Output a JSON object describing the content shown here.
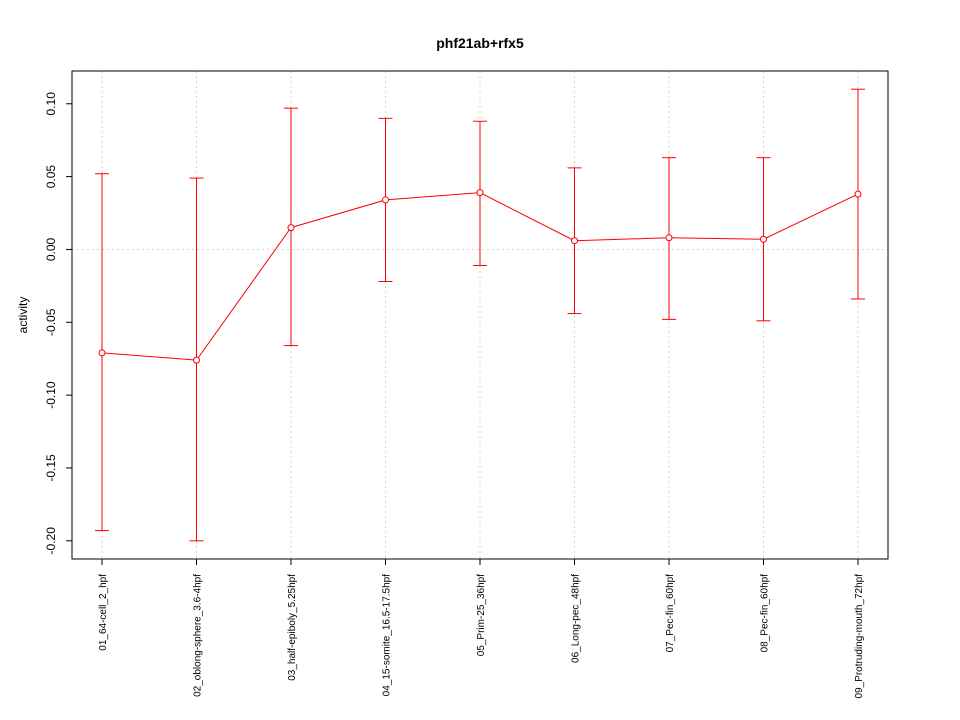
{
  "chart_data": {
    "type": "line",
    "title": "phf21ab+rfx5",
    "ylabel": "activity",
    "xlabel": "",
    "categories": [
      "01_64-cell_2_hpf",
      "02_oblong-sphere_3.6-4hpf",
      "03_half-epiboly_5.25hpf",
      "04_15-somite_16.5-17.5hpf",
      "05_Prim-25_36hpf",
      "06_Long-pec_48hpf",
      "07_Pec-fin_60hpf",
      "08_Pec-fin_60hpf",
      "09_Protruding-mouth_72hpf"
    ],
    "series": [
      {
        "values": [
          -0.071,
          -0.076,
          0.015,
          0.034,
          0.039,
          0.006,
          0.008,
          0.007,
          0.038
        ],
        "upper": [
          0.052,
          0.049,
          0.097,
          0.09,
          0.088,
          0.056,
          0.063,
          0.063,
          0.11
        ],
        "lower": [
          -0.193,
          -0.2,
          -0.066,
          -0.022,
          -0.011,
          -0.044,
          -0.048,
          -0.049,
          -0.034
        ],
        "color": "#ff0000"
      }
    ],
    "yticks": [
      -0.2,
      -0.15,
      -0.1,
      -0.05,
      0.0,
      0.05,
      0.1
    ],
    "ytick_labels": [
      "-0.20",
      "-0.15",
      "-0.10",
      "-0.05",
      "0.00",
      "0.05",
      "0.10"
    ],
    "ylim": [
      -0.2125,
      0.1225
    ],
    "grid": true,
    "reference_line": 0.0,
    "grid_color": "#d3d3d3",
    "axis_color": "#000000"
  }
}
